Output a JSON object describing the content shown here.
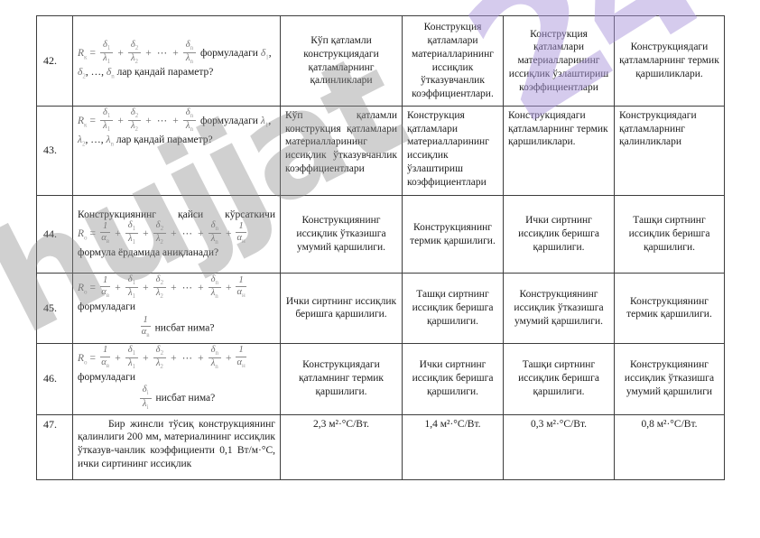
{
  "watermark": {
    "word": "hujjat",
    "number": "24",
    "word_color": "#8a8a8a",
    "number_color": "#a892da"
  },
  "table": {
    "rows": [
      {
        "no": "42.",
        "question": [
          {
            "align": "left",
            "seg": [
              {
                "v": "R",
                "s": "к"
              },
              {
                "o": "="
              },
              {
                "f": [
                  "δ",
                  "λ"
                ],
                "s": [
                  "1",
                  "1"
                ]
              },
              {
                "o": "+"
              },
              {
                "f": [
                  "δ",
                  "λ"
                ],
                "s": [
                  "2",
                  "2"
                ]
              },
              {
                "o": "+"
              },
              {
                "o": "⋯"
              },
              {
                "o": "+"
              },
              {
                "f": [
                  "δ",
                  "λ"
                ],
                "s": [
                  "n",
                  "n"
                ]
              },
              {
                "t": "  формуладаги "
              },
              {
                "v": "δ",
                "s": "1"
              },
              {
                "t": ",  "
              },
              {
                "v": "δ",
                "s": "2"
              },
              {
                "t": ", …, "
              },
              {
                "v": "δ",
                "s": "n"
              },
              {
                "t": " лар қандай параметр?"
              }
            ]
          }
        ],
        "answers": [
          "Кўп қатламли конструкциядаги қатламларнинг қалинликлари",
          "Конструкция қатламлари материалларининг иссиқлик ўтказувчанлик коэффициентлари.",
          "Конструкция қатламлари материалларининг иссиқлик ўзлаштириш коэффициентлари",
          "Конструкциядаги қатламларнинг термик қаршиликлари."
        ]
      },
      {
        "no": "43.",
        "question": [
          {
            "align": "left",
            "seg": [
              {
                "v": "R",
                "s": "к"
              },
              {
                "o": "="
              },
              {
                "f": [
                  "δ",
                  "λ"
                ],
                "s": [
                  "1",
                  "1"
                ]
              },
              {
                "o": "+"
              },
              {
                "f": [
                  "δ",
                  "λ"
                ],
                "s": [
                  "2",
                  "2"
                ]
              },
              {
                "o": "+"
              },
              {
                "o": "⋯"
              },
              {
                "o": "+"
              },
              {
                "f": [
                  "δ",
                  "λ"
                ],
                "s": [
                  "n",
                  "n"
                ]
              },
              {
                "t": "  формуладаги "
              },
              {
                "v": "λ",
                "s": "1"
              },
              {
                "t": ",  "
              },
              {
                "v": "λ",
                "s": "2"
              },
              {
                "t": ", …, "
              },
              {
                "v": "λ",
                "s": "n"
              },
              {
                "t": " лар қандай параметр?"
              }
            ]
          }
        ],
        "answers": [
          "Кўп қатламли конструкция қатламлари материалларининг иссиқлик ўтказувчанлик коэффициентлари",
          "Конструкция қатламлари материалларининг иссиқлик ўзлаштириш коэффициентлари",
          "Конструкциядаги қатламларнинг термик қаршиликлари.",
          "Конструкциядаги қатламларнинг қалинликлари"
        ]
      },
      {
        "no": "44.",
        "question": [
          {
            "align": "jlast",
            "seg": [
              {
                "t": "Конструкциянинг қайси кўрсаткичи"
              }
            ]
          },
          {
            "align": "left",
            "seg": [
              {
                "v": "R",
                "s": "о"
              },
              {
                "o": "="
              },
              {
                "f": [
                  "1",
                  "α"
                ],
                "s": [
                  "",
                  "в"
                ]
              },
              {
                "o": "+"
              },
              {
                "f": [
                  "δ",
                  "λ"
                ],
                "s": [
                  "1",
                  "1"
                ]
              },
              {
                "o": "+"
              },
              {
                "f": [
                  "δ",
                  "λ"
                ],
                "s": [
                  "2",
                  "2"
                ]
              },
              {
                "o": "+"
              },
              {
                "o": "⋯"
              },
              {
                "o": "+"
              },
              {
                "f": [
                  "δ",
                  "λ"
                ],
                "s": [
                  "n",
                  "n"
                ]
              },
              {
                "o": "+"
              },
              {
                "f": [
                  "1",
                  "α"
                ],
                "s": [
                  "",
                  "н"
                ]
              }
            ]
          },
          {
            "align": "left",
            "seg": [
              {
                "t": "формула ёрдамида аниқланади?"
              }
            ]
          }
        ],
        "answers": [
          "Конструкциянинг иссиқлик ўтказишга умумий қаршилиги.",
          "Конструкциянинг термик қаршилиги.",
          "Ички сиртнинг иссиқлик беришга қаршилиги.",
          "Ташқи сиртнинг иссиқлик беришга қаршилиги."
        ]
      },
      {
        "no": "45.",
        "question": [
          {
            "align": "left",
            "seg": [
              {
                "v": "R",
                "s": "о"
              },
              {
                "o": "="
              },
              {
                "f": [
                  "1",
                  "α"
                ],
                "s": [
                  "",
                  "в"
                ]
              },
              {
                "o": "+"
              },
              {
                "f": [
                  "δ",
                  "λ"
                ],
                "s": [
                  "1",
                  "1"
                ]
              },
              {
                "o": "+"
              },
              {
                "f": [
                  "δ",
                  "λ"
                ],
                "s": [
                  "2",
                  "2"
                ]
              },
              {
                "o": "+"
              },
              {
                "o": "⋯"
              },
              {
                "o": "+"
              },
              {
                "f": [
                  "δ",
                  "λ"
                ],
                "s": [
                  "n",
                  "n"
                ]
              },
              {
                "o": "+"
              },
              {
                "f": [
                  "1",
                  "α"
                ],
                "s": [
                  "",
                  "н"
                ]
              },
              {
                "t": "  формуладаги"
              }
            ]
          },
          {
            "align": "center",
            "seg": [
              {
                "f": [
                  "1",
                  "α"
                ],
                "s": [
                  "",
                  "в"
                ]
              },
              {
                "t": " нисбат нима?"
              }
            ]
          }
        ],
        "answers": [
          "Ички сиртнинг иссиқлик беришга қаршилиги.",
          "Ташқи сиртнинг иссиқлик беришга қаршилиги.",
          "Конструкциянинг иссиқлик ўтказишга умумий қаршилиги.",
          "Конструкциянинг термик қаршилиги."
        ]
      },
      {
        "no": "46.",
        "question": [
          {
            "align": "left",
            "seg": [
              {
                "v": "R",
                "s": "о"
              },
              {
                "o": "="
              },
              {
                "f": [
                  "1",
                  "α"
                ],
                "s": [
                  "",
                  "в"
                ]
              },
              {
                "o": "+"
              },
              {
                "f": [
                  "δ",
                  "λ"
                ],
                "s": [
                  "1",
                  "1"
                ]
              },
              {
                "o": "+"
              },
              {
                "f": [
                  "δ",
                  "λ"
                ],
                "s": [
                  "2",
                  "2"
                ]
              },
              {
                "o": "+"
              },
              {
                "o": "⋯"
              },
              {
                "o": "+"
              },
              {
                "f": [
                  "δ",
                  "λ"
                ],
                "s": [
                  "n",
                  "n"
                ]
              },
              {
                "o": "+"
              },
              {
                "f": [
                  "1",
                  "α"
                ],
                "s": [
                  "",
                  "н"
                ]
              },
              {
                "t": "  формуладаги"
              }
            ]
          },
          {
            "align": "center",
            "seg": [
              {
                "f": [
                  "δ",
                  "λ"
                ],
                "s": [
                  "i",
                  "i"
                ]
              },
              {
                "t": " нисбат нима?"
              }
            ]
          }
        ],
        "answers": [
          "Конструкциядаги қатламнинг термик қаршилиги.",
          "Ички сиртнинг иссиқлик беришга қаршилиги.",
          "Ташқи сиртнинг иссиқлик беришга қаршилиги.",
          "Конструкциянинг иссиқлик ўтказишга умумий қаршилиги"
        ]
      },
      {
        "no": "47.",
        "question": [
          {
            "align": "justify",
            "indent": true,
            "seg": [
              {
                "t": "Бир жинсли тўсиқ конструкциянинг қалинлиги 200 мм, материалининг иссиқлик ўтказув-чанлик коэффициенти 0,1 Вт/м·°С, ички сиртининг иссиқлик"
              }
            ]
          }
        ],
        "answers": [
          "2,3 м²·°С/Вт.",
          "1,4 м²·°С/Вт.",
          "0,3 м²·°С/Вт.",
          "0,8 м²·°С/Вт."
        ]
      }
    ]
  }
}
